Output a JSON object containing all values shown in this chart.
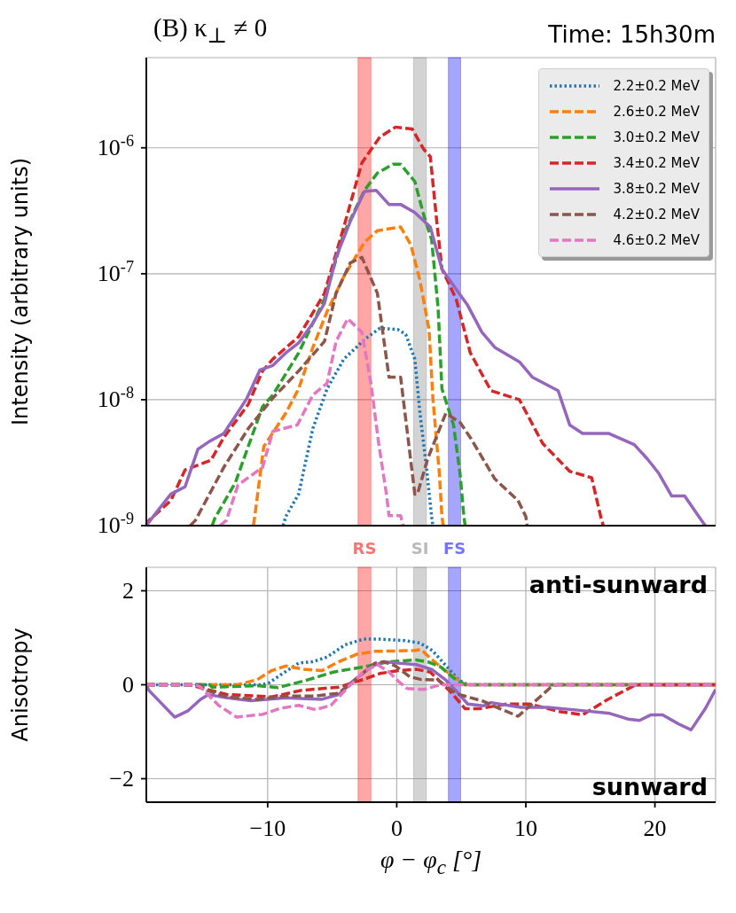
{
  "chart_data": [
    {
      "type": "line",
      "title": "(B) κ$_{⊥}$ ≠ 0",
      "subtitle": "Time: 15h30m",
      "ylabel": "Intensity (arbitrary units)",
      "log": "y",
      "xlim": [
        -19.4,
        24.7
      ],
      "xticks": [
        -10,
        0,
        10,
        20
      ],
      "ylim": [
        1e-09,
        5.2e-06
      ],
      "yticks": [
        {
          "value": 1e-09,
          "label": "10$^{-9}$"
        },
        {
          "value": 1e-08,
          "label": "10$^{-8}$"
        },
        {
          "value": 1e-07,
          "label": "10$^{-7}$"
        },
        {
          "value": 1e-06,
          "label": "10$^{-6}$"
        }
      ],
      "tick_labels": "y",
      "grid": true,
      "legend": "top right",
      "bands": [
        {
          "axis": "x",
          "from": -3.0,
          "to": -2.0,
          "label": "RS",
          "color": "#ff0000"
        },
        {
          "axis": "x",
          "from": 1.3,
          "to": 2.3,
          "label": "SI",
          "color": "#808080"
        },
        {
          "axis": "x",
          "from": 4.0,
          "to": 4.95,
          "label": "FS",
          "color": "#0000ff"
        }
      ],
      "series": [
        {
          "name": "2.2±0.2 MeV",
          "color": "#1f77b4",
          "line_style": "dotted",
          "x": [
            -8.8,
            -8.6,
            -7.6,
            -6.5,
            -5.4,
            -4.1,
            -2.4,
            -1.3,
            0.1,
            0.7,
            1.4,
            1.8,
            2.3,
            2.7,
            2.8
          ],
          "values": [
            1e-09,
            1.18e-09,
            1.78e-09,
            5.9e-09,
            1.22e-08,
            2.1e-08,
            3.06e-08,
            3.7e-08,
            3.6e-08,
            3.3e-08,
            2.1e-08,
            7.8e-09,
            2.9e-09,
            1.18e-09,
            1e-09
          ]
        },
        {
          "name": "2.6±0.2 MeV",
          "color": "#ff7f0e",
          "line_style": "dashed",
          "x": [
            -11.1,
            -11,
            -10.3,
            -8.6,
            -7.6,
            -6.5,
            -5.4,
            -4.1,
            -2.5,
            -1.5,
            0.3,
            1.1,
            1.8,
            2.5,
            2.8,
            3.3,
            3.5,
            3.6
          ],
          "values": [
            1e-09,
            1.18e-09,
            4.25e-09,
            7.8e-09,
            1.22e-08,
            2.6e-08,
            5e-08,
            9.5e-08,
            1.78e-07,
            2.2e-07,
            2.35e-07,
            1.69e-07,
            8.8e-08,
            3.6e-08,
            1.03e-08,
            2.6e-09,
            1.18e-09,
            1e-09
          ]
        },
        {
          "name": "3.0±0.2 MeV",
          "color": "#2ca02c",
          "line_style": "dashed",
          "x": [
            -14.3,
            -14.1,
            -12.5,
            -10.4,
            -9.6,
            -7.6,
            -5.6,
            -4.1,
            -2.5,
            -1.5,
            -0.3,
            0.3,
            1.4,
            2.1,
            2.7,
            3.2,
            3.5,
            4.4,
            4.9,
            5.2,
            5.3
          ],
          "values": [
            1e-09,
            1.14e-09,
            2.2e-09,
            8.8e-09,
            1.09e-08,
            2.35e-08,
            6.3e-08,
            2.1e-07,
            4.6e-07,
            6.3e-07,
            7.4e-07,
            7.4e-07,
            5.4e-07,
            2.9e-07,
            1.87e-07,
            5.4e-08,
            1.22e-08,
            6.3e-09,
            2.6e-09,
            1.18e-09,
            1e-09
          ]
        },
        {
          "name": "3.4±0.2 MeV",
          "color": "#d62728",
          "line_style": "dashed",
          "x": [
            -19.4,
            -19.2,
            -17.5,
            -16.4,
            -14.4,
            -13.4,
            -11.5,
            -10.4,
            -9.6,
            -7.6,
            -5.6,
            -4.1,
            -2.7,
            -1.3,
            -0.1,
            1.2,
            2.1,
            2.6,
            3.1,
            3.5,
            4.6,
            5.7,
            7.3,
            9.5,
            11.3,
            13.4,
            15.1,
            15.8,
            16.0
          ],
          "values": [
            1e-09,
            1.1e-09,
            1.58e-09,
            2.77e-09,
            3.3e-09,
            5e-09,
            9.2e-09,
            1.69e-08,
            2.1e-08,
            3.16e-08,
            7e-08,
            2.35e-07,
            7.6e-07,
            1.22e-06,
            1.46e-06,
            1.41e-06,
            9.7e-07,
            8.5e-07,
            2.6e-07,
            1.09e-07,
            6.3e-08,
            2.35e-08,
            1.18e-08,
            1e-08,
            4.5e-09,
            2.7e-09,
            2.4e-09,
            1.18e-09,
            1e-09
          ]
        },
        {
          "name": "3.8±0.2 MeV",
          "color": "#9467bd",
          "line_style": "solid",
          "x": [
            -19.4,
            -18.5,
            -17.5,
            -16.4,
            -15.4,
            -14.6,
            -13.4,
            -12.5,
            -11.6,
            -10.6,
            -9.6,
            -8.6,
            -7.6,
            -6.5,
            -5.6,
            -4.7,
            -3.6,
            -2.5,
            -1.6,
            -0.6,
            0.3,
            1.4,
            2.6,
            3.5,
            4.5,
            5.5,
            6.6,
            7.6,
            9.5,
            10.5,
            12.5,
            13.4,
            14.4,
            16.4,
            18.4,
            19.4,
            20.3,
            21.3,
            22.3,
            23.4,
            23.9
          ],
          "values": [
            1e-09,
            1.32e-09,
            1.78e-09,
            2.03e-09,
            4.05e-09,
            4.6e-09,
            5.4e-09,
            7.4e-09,
            1.03e-08,
            1.72e-08,
            1.87e-08,
            2.35e-08,
            2.82e-08,
            4.05e-08,
            5.8e-08,
            1.35e-07,
            2.6e-07,
            4.5e-07,
            4.6e-07,
            3.55e-07,
            3.55e-07,
            3.06e-07,
            2.35e-07,
            1.09e-07,
            7.8e-08,
            5.6e-08,
            3.43e-08,
            2.6e-08,
            2e-08,
            1.51e-08,
            1.18e-08,
            6.3e-09,
            5.4e-09,
            5.4e-09,
            4.4e-09,
            3.4e-09,
            2.6e-09,
            1.72e-09,
            1.72e-09,
            1.18e-09,
            1e-09
          ]
        },
        {
          "name": "4.2±0.2 MeV",
          "color": "#8c564b",
          "line_style": "dashed",
          "x": [
            -16,
            -15.6,
            -13.4,
            -11.5,
            -9.6,
            -7.6,
            -5.6,
            -4.7,
            -3.6,
            -2.7,
            -1.5,
            -0.6,
            0.3,
            1.4,
            1.6,
            2.4,
            3.8,
            4.9,
            5.7,
            7.6,
            9.4,
            10,
            10.1
          ],
          "values": [
            1e-09,
            1.1e-09,
            2.9e-09,
            5.9e-09,
            1.03e-08,
            1.69e-08,
            2.9e-08,
            7e-08,
            1.22e-07,
            1.35e-07,
            7e-08,
            1.51e-08,
            1.51e-08,
            1.78e-09,
            1.78e-09,
            3.4e-09,
            7.8e-09,
            6.6e-09,
            5e-09,
            2.35e-09,
            1.58e-09,
            1.18e-09,
            1e-09
          ]
        },
        {
          "name": "4.6±0.2 MeV",
          "color": "#e377c2",
          "line_style": "dashed",
          "x": [
            -13.7,
            -13.2,
            -12.3,
            -10.4,
            -9.6,
            -7.7,
            -6.5,
            -5.4,
            -4.7,
            -3.8,
            -2.7,
            -2,
            -1.4,
            -0.8,
            -0.6,
            0.3,
            0.5
          ],
          "values": [
            1e-09,
            1.1e-09,
            2.1e-09,
            2.9e-09,
            5.6e-09,
            6.3e-09,
            1.09e-08,
            1.35e-08,
            2.9e-08,
            4.4e-08,
            3.43e-08,
            1.35e-08,
            4.5e-09,
            1.78e-09,
            1.2e-09,
            1.2e-09,
            1e-09
          ]
        }
      ]
    },
    {
      "type": "line",
      "xlabel": "φ − φ$_{c}$ [°]",
      "ylabel": "Anisotropy",
      "xlim": [
        -19.4,
        24.7
      ],
      "xticks": [
        -10,
        0,
        10,
        20
      ],
      "ylim": [
        -2.5,
        2.5
      ],
      "yticks": [
        -2,
        0,
        2
      ],
      "grid": true,
      "annotations": [
        "anti-sunward",
        "sunward"
      ],
      "bands": [
        {
          "axis": "x",
          "from": -3.0,
          "to": -2.0,
          "color": "#ff0000"
        },
        {
          "axis": "x",
          "from": 1.3,
          "to": 2.3,
          "color": "#808080"
        },
        {
          "axis": "x",
          "from": 4.0,
          "to": 4.95,
          "color": "#0000ff"
        }
      ],
      "series": [
        {
          "color": "#1f77b4",
          "line_style": "dotted",
          "x": [
            -19.4,
            -10.5,
            -9.9,
            -9,
            -7.6,
            -6.5,
            -5.4,
            -4,
            -2.6,
            -1.3,
            0.6,
            1.8,
            2.75,
            3.9,
            4.8,
            5.5,
            24.7
          ],
          "values": [
            0,
            0,
            0.04,
            0.21,
            0.46,
            0.49,
            0.59,
            0.85,
            0.97,
            0.97,
            0.94,
            0.89,
            0.73,
            0.38,
            0.1,
            0,
            0
          ]
        },
        {
          "color": "#ff7f0e",
          "line_style": "dashed",
          "x": [
            -19.4,
            -12.5,
            -12.2,
            -10.8,
            -9.7,
            -8.6,
            -7.2,
            -5.8,
            -4.5,
            -3.1,
            -1.7,
            0.1,
            1.4,
            1.9,
            2.3,
            3.4,
            4.6,
            5.3,
            24.7
          ],
          "values": [
            0,
            0,
            0.01,
            0.11,
            0.3,
            0.4,
            0.33,
            0.3,
            0.49,
            0.65,
            0.71,
            0.72,
            0.73,
            0.75,
            0.64,
            0.38,
            0.13,
            0,
            0
          ]
        },
        {
          "color": "#2ca02c",
          "line_style": "dashed",
          "x": [
            -19.4,
            -14.5,
            -14.3,
            -10.8,
            -9.2,
            -7.2,
            -4.9,
            -2.6,
            -0.6,
            1.5,
            2.5,
            3.4,
            4.6,
            5.3,
            24.7
          ],
          "values": [
            0,
            0,
            -0.05,
            -0.02,
            -0.06,
            0.08,
            0.27,
            0.38,
            0.49,
            0.53,
            0.48,
            0.38,
            0.1,
            0,
            0
          ]
        },
        {
          "color": "#d62728",
          "line_style": "dashed",
          "x": [
            -19.4,
            -16,
            -15.4,
            -13.1,
            -10.8,
            -9.7,
            -7.4,
            -4.5,
            -2.6,
            -1.3,
            0.1,
            1.5,
            2.6,
            3,
            4.1,
            5.3,
            6.4,
            8.5,
            10.3,
            12.6,
            14.4,
            16.3,
            18.3,
            18.8,
            24.7
          ],
          "values": [
            0,
            0,
            -0.05,
            -0.21,
            -0.24,
            -0.26,
            -0.12,
            -0.05,
            0.11,
            0.24,
            0.3,
            0.33,
            0.27,
            0.16,
            -0.13,
            -0.51,
            -0.51,
            -0.41,
            -0.41,
            -0.57,
            -0.64,
            -0.32,
            -0.03,
            0,
            0
          ]
        },
        {
          "color": "#9467bd",
          "line_style": "solid",
          "x": [
            -19.4,
            -19.2,
            -17.2,
            -16.2,
            -15.2,
            -14.6,
            -13.1,
            -11.3,
            -8.6,
            -5.8,
            -4.5,
            -3.1,
            -1.9,
            -1,
            0.1,
            1.5,
            2.75,
            3.8,
            4.6,
            5.5,
            6.7,
            7.3,
            9.6,
            11.7,
            14,
            16.5,
            17.9,
            18.8,
            19.7,
            20.6,
            21.8,
            22.8,
            23.9,
            24.7
          ],
          "values": [
            0,
            -0.12,
            -0.69,
            -0.56,
            -0.31,
            -0.21,
            -0.28,
            -0.34,
            -0.28,
            -0.31,
            -0.21,
            0.14,
            0.4,
            0.49,
            0.46,
            0.43,
            0.32,
            0.1,
            -0.13,
            -0.41,
            -0.45,
            -0.38,
            -0.48,
            -0.48,
            -0.54,
            -0.61,
            -0.73,
            -0.76,
            -0.64,
            -0.64,
            -0.83,
            -0.96,
            -0.51,
            -0.1
          ]
        },
        {
          "color": "#8c564b",
          "line_style": "dashed",
          "x": [
            -19.4,
            -15.3,
            -14.7,
            -13.1,
            -10.8,
            -8.6,
            -6.3,
            -4.5,
            -3.1,
            -1.7,
            -1,
            -0.1,
            1,
            1.9,
            3.2,
            4.6,
            6.7,
            8,
            9.4,
            10.6,
            11.9,
            12.4,
            24.7
          ],
          "values": [
            0,
            0,
            -0.12,
            -0.26,
            -0.31,
            -0.24,
            -0.24,
            -0.18,
            0.14,
            0.46,
            0.49,
            0.4,
            0.17,
            0.11,
            0.1,
            -0.19,
            -0.35,
            -0.51,
            -0.67,
            -0.38,
            -0.06,
            0,
            0
          ]
        },
        {
          "color": "#e377c2",
          "line_style": "dashed",
          "x": [
            -19.4,
            -15.6,
            -15.2,
            -13.8,
            -12.4,
            -10.4,
            -9,
            -7.6,
            -6.3,
            -5.1,
            -4,
            -2.6,
            -1.5,
            -0.6,
            0.1,
            0.8,
            2.1,
            3.4,
            24.7
          ],
          "values": [
            0,
            0,
            -0.05,
            -0.44,
            -0.69,
            -0.63,
            -0.5,
            -0.44,
            -0.53,
            -0.44,
            -0.12,
            0.27,
            0.43,
            0.27,
            0.08,
            -0.08,
            -0.1,
            0,
            0
          ]
        }
      ]
    }
  ]
}
